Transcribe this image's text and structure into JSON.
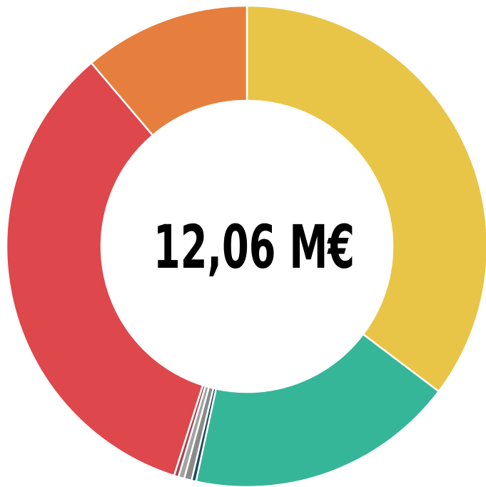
{
  "chart_data": {
    "type": "pie",
    "center_label": "12,06 M€",
    "values": [
      35.3,
      18.1,
      0.3,
      0.5,
      0.4,
      0.3,
      33.9,
      11.2
    ],
    "colors": [
      "#e8c547",
      "#36b699",
      "#1e4a5c",
      "#8a8a8a",
      "#a3a3a3",
      "#a5474f",
      "#de474c",
      "#e67f3e"
    ]
  }
}
